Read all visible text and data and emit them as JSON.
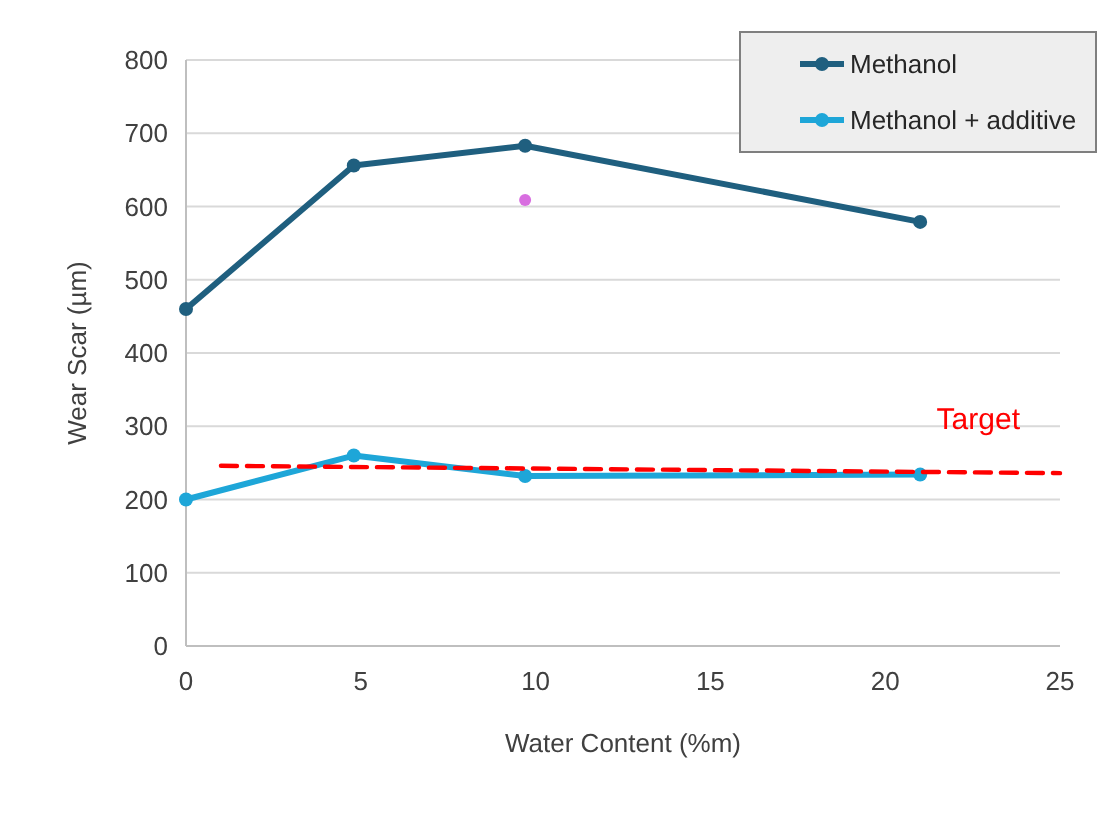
{
  "chart_data": {
    "type": "line",
    "xlabel": "Water Content (%m)",
    "ylabel": "Wear Scar (µm)",
    "xlim": [
      0,
      25
    ],
    "xticks": [
      0,
      5,
      10,
      15,
      20,
      25
    ],
    "ylim": [
      0,
      800
    ],
    "yticks": [
      0,
      100,
      200,
      300,
      400,
      500,
      600,
      700,
      800
    ],
    "grid": "y",
    "legend": "top right",
    "marker": "circle",
    "series": [
      {
        "name": "Methanol",
        "color": "#1f5f7f",
        "x": [
          0,
          4.8,
          9.7,
          21
        ],
        "values": [
          460,
          656,
          683,
          579
        ]
      },
      {
        "name": "Methanol + additive",
        "color": "#1ea6d8",
        "x": [
          0,
          4.8,
          9.7,
          21
        ],
        "values": [
          200,
          260,
          232,
          234
        ]
      },
      {
        "type": "scatter",
        "color": "#d86ee0",
        "x": [
          9.7
        ],
        "values": [
          609
        ]
      },
      {
        "name": "Target",
        "type": "line",
        "line_style": "dashed",
        "marker": "none",
        "color": "#ff0000",
        "x": [
          1,
          25
        ],
        "values": [
          246,
          236
        ]
      }
    ]
  }
}
